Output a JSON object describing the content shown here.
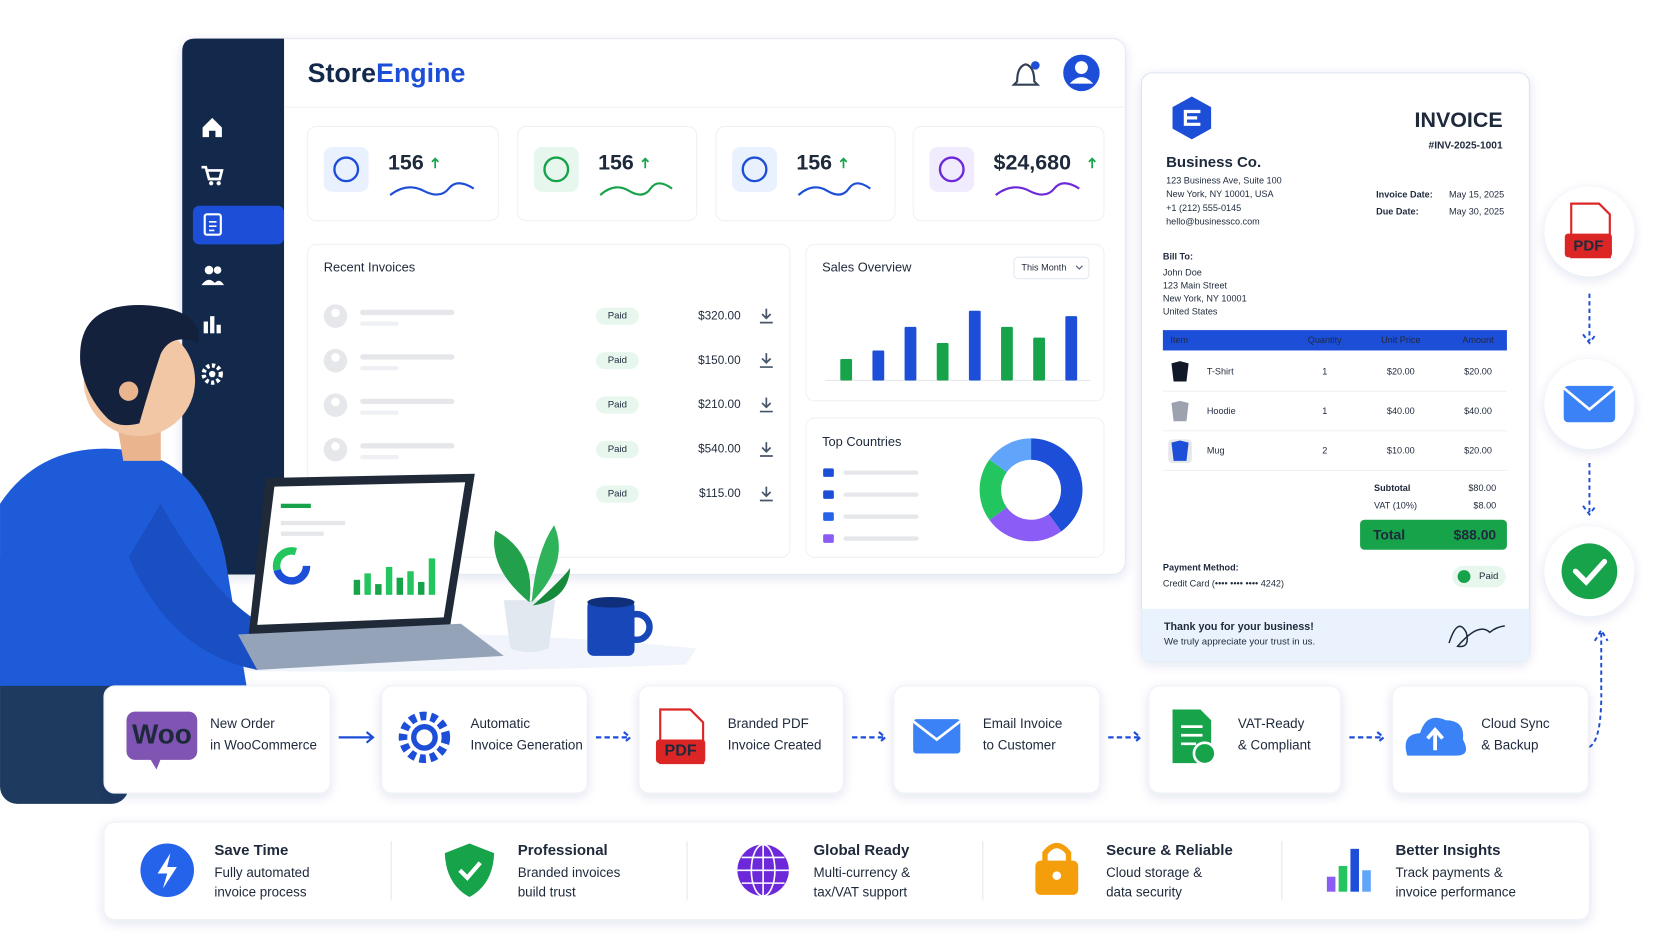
{
  "brand": [
    "Store",
    "Engine"
  ],
  "stats": [
    "156",
    "156",
    "156",
    "$24,680"
  ],
  "recent_invoices": {
    "title": "Recent Invoices",
    "rows": [
      {
        "status": "Paid",
        "amount": "$320.00"
      },
      {
        "status": "Paid",
        "amount": "$150.00"
      },
      {
        "status": "Paid",
        "amount": "$210.00"
      },
      {
        "status": "Paid",
        "amount": "$540.00"
      },
      {
        "status": "Paid",
        "amount": "$115.00"
      }
    ]
  },
  "sales_overview": {
    "title": "Sales Overview",
    "filter": "This Month",
    "values": [
      20,
      28,
      50,
      35,
      65,
      50,
      40,
      60
    ],
    "colors": [
      "#16a34a",
      "#1d4ed8",
      "#1d4ed8",
      "#16a34a",
      "#1d4ed8",
      "#16a34a",
      "#16a34a",
      "#1d4ed8"
    ],
    "ylim": [
      0,
      70
    ]
  },
  "top_countries": {
    "title": "Top Countries",
    "shares": [
      40,
      25,
      20,
      15
    ],
    "colors": [
      "#1d4ed8",
      "#8b5cf6",
      "#22c55e",
      "#60a5fa"
    ]
  },
  "invoice": {
    "title": "INVOICE",
    "number": "#INV-2025-1001",
    "company": "Business Co.",
    "address": [
      "123 Business Ave, Suite 100",
      "New York, NY 10001, USA",
      "+1 (212) 555-0145",
      "hello@businessco.com"
    ],
    "dates": [
      {
        "label": "Invoice Date:",
        "value": "May 15, 2025"
      },
      {
        "label": "Due Date:",
        "value": "May 30, 2025"
      }
    ],
    "bill_to_label": "Bill To:",
    "bill_to": [
      "John Doe",
      "123 Main Street",
      "New York, NY 10001",
      "United States"
    ],
    "columns": [
      "Item",
      "Quantity",
      "Unit Price",
      "Amount"
    ],
    "items": [
      [
        "T-Shirt",
        "1",
        "$20.00",
        "$20.00"
      ],
      [
        "Hoodie",
        "1",
        "$40.00",
        "$40.00"
      ],
      [
        "Mug",
        "2",
        "$10.00",
        "$20.00"
      ]
    ],
    "subtotal": {
      "label": "Subtotal",
      "value": "$80.00"
    },
    "vat": {
      "label": "VAT (10%)",
      "value": "$8.00"
    },
    "total": {
      "label": "Total",
      "value": "$88.00"
    },
    "payment_label": "Payment Method:",
    "payment": "Credit Card (•••• •••• •••• 4242)",
    "status": "Paid",
    "thanks": "Thank you for your business!",
    "appreciation": "We truly appreciate your trust in us."
  },
  "pdf_label": "PDF",
  "woo_logo": "Woo",
  "workflow": [
    [
      "New Order",
      "in WooCommerce"
    ],
    [
      "Automatic",
      "Invoice Generation"
    ],
    [
      "Branded PDF",
      "Invoice Created"
    ],
    [
      "Email Invoice",
      "to Customer"
    ],
    [
      "VAT-Ready",
      "& Compliant"
    ],
    [
      "Cloud Sync",
      "& Backup"
    ]
  ],
  "benefits": [
    {
      "title": "Save Time",
      "lines": [
        "Fully automated",
        "invoice process"
      ]
    },
    {
      "title": "Professional",
      "lines": [
        "Branded invoices",
        "build trust"
      ]
    },
    {
      "title": "Global Ready",
      "lines": [
        "Multi-currency &",
        "tax/VAT support"
      ]
    },
    {
      "title": "Secure & Reliable",
      "lines": [
        "Cloud storage &",
        "data security"
      ]
    },
    {
      "title": "Better Insights",
      "lines": [
        "Track payments &",
        "invoice performance"
      ]
    }
  ]
}
